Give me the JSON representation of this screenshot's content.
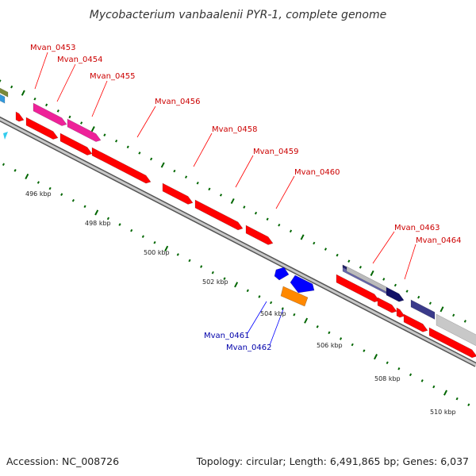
{
  "title": "Mycobacterium vanbaalenii PYR-1, complete genome",
  "footer": {
    "accession_text": "Accession: NC_008726",
    "summary_text": "Topology: circular; Length: 6,491,865 bp; Genes: 6,037"
  },
  "colors": {
    "forward_gene": "#ff0000",
    "reverse_gene": "#0000ff",
    "label_forward": "#cc0000",
    "label_reverse": "#0000aa",
    "tick": "#006600",
    "backbone": "#888888"
  },
  "scale": {
    "unit": "kbp",
    "labels": [
      "496 kbp",
      "498 kbp",
      "500 kbp",
      "502 kbp",
      "504 kbp",
      "506 kbp",
      "508 kbp",
      "510 kbp"
    ]
  },
  "labels": {
    "forward": [
      "Mvan_0453",
      "Mvan_0454",
      "Mvan_0455",
      "Mvan_0456",
      "Mvan_0458",
      "Mvan_0459",
      "Mvan_0460",
      "Mvan_0463",
      "Mvan_0464"
    ],
    "reverse": [
      "Mvan_0461",
      "Mvan_0462"
    ]
  }
}
